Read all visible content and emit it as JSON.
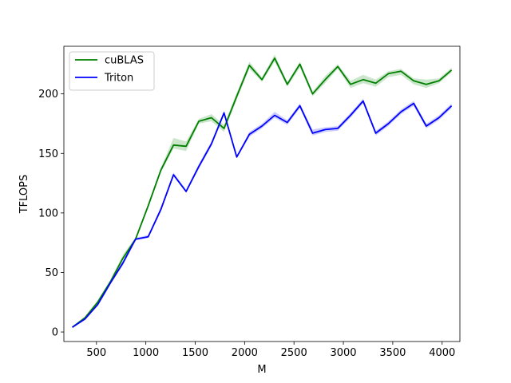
{
  "chart_data": {
    "type": "line",
    "xlabel": "M",
    "ylabel": "TFLOPS",
    "xlim": [
      170,
      4180
    ],
    "ylim": [
      -8,
      240
    ],
    "xticks": [
      500,
      1000,
      1500,
      2000,
      2500,
      3000,
      3500,
      4000
    ],
    "yticks": [
      0,
      50,
      100,
      150,
      200
    ],
    "grid": false,
    "legend_position": "upper-left",
    "x": [
      256,
      384,
      512,
      640,
      768,
      896,
      1024,
      1152,
      1280,
      1408,
      1536,
      1664,
      1792,
      1920,
      2048,
      2176,
      2304,
      2432,
      2560,
      2688,
      2816,
      2944,
      3072,
      3200,
      3328,
      3456,
      3584,
      3712,
      3840,
      3968,
      4096
    ],
    "series": [
      {
        "name": "cuBLAS",
        "color": "#008000",
        "values": [
          4,
          12,
          25,
          42,
          62,
          78,
          106,
          136,
          157,
          156,
          177,
          180,
          171,
          198,
          224,
          212,
          230,
          208,
          225,
          200,
          212,
          223,
          208,
          212,
          209,
          217,
          219,
          211,
          208,
          211,
          220
        ],
        "band_lower": [
          3.5,
          11,
          23.5,
          40.5,
          60.5,
          76.5,
          104,
          134,
          154,
          152,
          175,
          177,
          168,
          195,
          221,
          210,
          227,
          206,
          222,
          198,
          209,
          221,
          205,
          209,
          206,
          214,
          216,
          208,
          205,
          209,
          218
        ],
        "band_upper": [
          4.5,
          13,
          26.5,
          43.5,
          65,
          79.5,
          108,
          138,
          163,
          160,
          179,
          183,
          174,
          201,
          227,
          214,
          233,
          210,
          227,
          202,
          215,
          225,
          211,
          216,
          212,
          219,
          221,
          213,
          212,
          213,
          222
        ]
      },
      {
        "name": "Triton",
        "color": "#0000ff",
        "values": [
          4,
          11,
          23,
          41,
          58,
          78,
          80,
          103,
          132,
          118,
          139,
          158,
          184,
          147,
          166,
          173,
          182,
          176,
          190,
          167,
          170,
          171,
          182,
          194,
          167,
          175,
          185,
          192,
          173,
          180,
          190
        ],
        "band_lower": [
          3.5,
          10,
          22,
          40,
          56,
          77,
          79,
          101,
          131,
          117,
          137,
          156,
          182,
          146,
          164,
          171,
          180,
          174,
          188,
          165,
          168,
          169,
          180,
          192,
          165,
          173,
          183,
          190,
          171,
          178,
          188
        ],
        "band_upper": [
          4.5,
          12,
          24.5,
          42,
          60,
          79,
          81.5,
          105,
          134,
          119.5,
          141,
          160,
          186,
          148,
          168,
          175,
          185,
          178,
          192,
          170,
          172,
          173,
          184,
          196,
          169,
          177,
          187,
          194,
          175,
          182,
          192
        ]
      }
    ]
  }
}
